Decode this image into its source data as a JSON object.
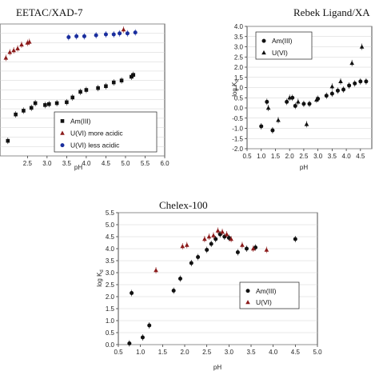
{
  "chart_data": [
    {
      "id": "eetac",
      "type": "scatter",
      "title": "EETAC/XAD-7",
      "xlabel": "pH",
      "ylabel": "",
      "xlim": [
        1.8,
        6.0
      ],
      "ylim": [
        -2.0,
        5.0
      ],
      "x_ticks": [
        "2.5",
        "3.0",
        "3.5",
        "4.0",
        "4.5",
        "5.0",
        "5.5",
        "6.0"
      ],
      "grid": true,
      "legend_position": "bottom-right",
      "series": [
        {
          "name": "Am(III)",
          "color": "#111111",
          "marker": "square",
          "points": [
            {
              "x": 2.0,
              "y": -1.2
            },
            {
              "x": 2.2,
              "y": 0.2
            },
            {
              "x": 2.4,
              "y": 0.4
            },
            {
              "x": 2.6,
              "y": 0.55
            },
            {
              "x": 2.7,
              "y": 0.8
            },
            {
              "x": 2.95,
              "y": 0.7
            },
            {
              "x": 3.05,
              "y": 0.75
            },
            {
              "x": 3.25,
              "y": 0.8
            },
            {
              "x": 3.5,
              "y": 0.85
            },
            {
              "x": 3.65,
              "y": 1.1
            },
            {
              "x": 3.85,
              "y": 1.4
            },
            {
              "x": 4.0,
              "y": 1.5
            },
            {
              "x": 4.3,
              "y": 1.6
            },
            {
              "x": 4.5,
              "y": 1.7
            },
            {
              "x": 4.7,
              "y": 1.9
            },
            {
              "x": 4.9,
              "y": 2.0
            },
            {
              "x": 5.15,
              "y": 2.2
            },
            {
              "x": 5.2,
              "y": 2.3
            }
          ]
        },
        {
          "name": "U(VI) more acidic",
          "color": "#8b1a1a",
          "marker": "triangle",
          "points": [
            {
              "x": 1.95,
              "y": 3.2
            },
            {
              "x": 2.05,
              "y": 3.5
            },
            {
              "x": 2.15,
              "y": 3.6
            },
            {
              "x": 2.25,
              "y": 3.7
            },
            {
              "x": 2.35,
              "y": 3.9
            },
            {
              "x": 2.5,
              "y": 4.0
            },
            {
              "x": 2.55,
              "y": 4.05
            },
            {
              "x": 4.95,
              "y": 4.7
            }
          ]
        },
        {
          "name": "U(VI) less acidic",
          "color": "#1a2e9e",
          "marker": "circle",
          "points": [
            {
              "x": 3.55,
              "y": 4.3
            },
            {
              "x": 3.75,
              "y": 4.35
            },
            {
              "x": 3.95,
              "y": 4.35
            },
            {
              "x": 4.25,
              "y": 4.4
            },
            {
              "x": 4.5,
              "y": 4.45
            },
            {
              "x": 4.7,
              "y": 4.45
            },
            {
              "x": 4.85,
              "y": 4.5
            },
            {
              "x": 5.05,
              "y": 4.5
            },
            {
              "x": 5.25,
              "y": 4.55
            }
          ]
        }
      ]
    },
    {
      "id": "rebek",
      "type": "scatter",
      "title": "Rebek Ligand/XA",
      "xlabel": "pH",
      "ylabel": "log K",
      "ylabel_subscript": "d",
      "xlim": [
        0.5,
        4.9
      ],
      "ylim": [
        -2.0,
        4.0
      ],
      "x_ticks": [
        "0.5",
        "1.0",
        "1.5",
        "2.0",
        "2.5",
        "3.0",
        "3.5",
        "4.0",
        "4.5"
      ],
      "y_ticks": [
        "4.0",
        "3.5",
        "3.0",
        "2.5",
        "2.0",
        "1.5",
        "1.0",
        "0.5",
        "0.0",
        "-0.5",
        "-1.0",
        "-1.5",
        "-2.0"
      ],
      "grid": true,
      "legend_position": "top-left",
      "series": [
        {
          "name": "Am(III)",
          "color": "#111111",
          "marker": "circle",
          "points": [
            {
              "x": 1.0,
              "y": -0.9
            },
            {
              "x": 1.2,
              "y": 0.3
            },
            {
              "x": 1.4,
              "y": -1.1
            },
            {
              "x": 1.9,
              "y": 0.3
            },
            {
              "x": 2.1,
              "y": 0.5
            },
            {
              "x": 2.2,
              "y": 0.1
            },
            {
              "x": 2.5,
              "y": 0.2
            },
            {
              "x": 2.7,
              "y": 0.2
            },
            {
              "x": 3.0,
              "y": 0.45
            },
            {
              "x": 3.3,
              "y": 0.6
            },
            {
              "x": 3.5,
              "y": 0.7
            },
            {
              "x": 3.7,
              "y": 0.85
            },
            {
              "x": 3.9,
              "y": 0.9
            },
            {
              "x": 4.1,
              "y": 1.1
            },
            {
              "x": 4.3,
              "y": 1.2
            },
            {
              "x": 4.5,
              "y": 1.3
            },
            {
              "x": 4.7,
              "y": 1.3
            }
          ]
        },
        {
          "name": "U(VI)",
          "color": "#111111",
          "marker": "triangle",
          "points": [
            {
              "x": 1.25,
              "y": 0.0
            },
            {
              "x": 1.6,
              "y": -0.6
            },
            {
              "x": 2.0,
              "y": 0.5
            },
            {
              "x": 2.3,
              "y": 0.3
            },
            {
              "x": 2.6,
              "y": -0.8
            },
            {
              "x": 2.95,
              "y": 0.4
            },
            {
              "x": 3.5,
              "y": 1.05
            },
            {
              "x": 3.8,
              "y": 1.3
            },
            {
              "x": 4.2,
              "y": 2.2
            },
            {
              "x": 4.55,
              "y": 3.0
            }
          ]
        }
      ]
    },
    {
      "id": "chelex",
      "type": "scatter",
      "title": "Chelex-100",
      "xlabel": "pH",
      "ylabel": "log K",
      "ylabel_subscript": "d",
      "xlim": [
        0.5,
        5.0
      ],
      "ylim": [
        0.0,
        5.5
      ],
      "x_ticks": [
        "0.5",
        "1.0",
        "1.5",
        "2.0",
        "2.5",
        "3.0",
        "3.5",
        "4.0",
        "4.5",
        "5.0"
      ],
      "y_ticks": [
        "5.5",
        "5.0",
        "4.5",
        "4.0",
        "3.5",
        "3.0",
        "2.5",
        "2.0",
        "1.5",
        "1.0",
        "0.5",
        "0.0"
      ],
      "grid": true,
      "legend_position": "bottom-right",
      "series": [
        {
          "name": "Am(III)",
          "color": "#111111",
          "marker": "circle",
          "points": [
            {
              "x": 0.75,
              "y": 0.05
            },
            {
              "x": 0.8,
              "y": 2.15
            },
            {
              "x": 1.05,
              "y": 0.3
            },
            {
              "x": 1.2,
              "y": 0.8
            },
            {
              "x": 1.75,
              "y": 2.25
            },
            {
              "x": 1.9,
              "y": 2.75
            },
            {
              "x": 2.15,
              "y": 3.4
            },
            {
              "x": 2.3,
              "y": 3.65
            },
            {
              "x": 2.5,
              "y": 3.95
            },
            {
              "x": 2.6,
              "y": 4.2
            },
            {
              "x": 2.7,
              "y": 4.4
            },
            {
              "x": 2.8,
              "y": 4.6
            },
            {
              "x": 2.9,
              "y": 4.5
            },
            {
              "x": 3.0,
              "y": 4.45
            },
            {
              "x": 3.2,
              "y": 3.85
            },
            {
              "x": 3.4,
              "y": 4.0
            },
            {
              "x": 3.6,
              "y": 4.05
            },
            {
              "x": 4.5,
              "y": 4.4
            }
          ]
        },
        {
          "name": "U(VI)",
          "color": "#8b1a1a",
          "marker": "triangle",
          "points": [
            {
              "x": 1.35,
              "y": 3.1
            },
            {
              "x": 1.95,
              "y": 4.1
            },
            {
              "x": 2.05,
              "y": 4.15
            },
            {
              "x": 2.45,
              "y": 4.4
            },
            {
              "x": 2.55,
              "y": 4.5
            },
            {
              "x": 2.65,
              "y": 4.55
            },
            {
              "x": 2.75,
              "y": 4.75
            },
            {
              "x": 2.85,
              "y": 4.7
            },
            {
              "x": 2.95,
              "y": 4.6
            },
            {
              "x": 3.05,
              "y": 4.4
            },
            {
              "x": 3.3,
              "y": 4.15
            },
            {
              "x": 3.55,
              "y": 4.0
            },
            {
              "x": 3.85,
              "y": 3.95
            }
          ]
        }
      ]
    }
  ]
}
